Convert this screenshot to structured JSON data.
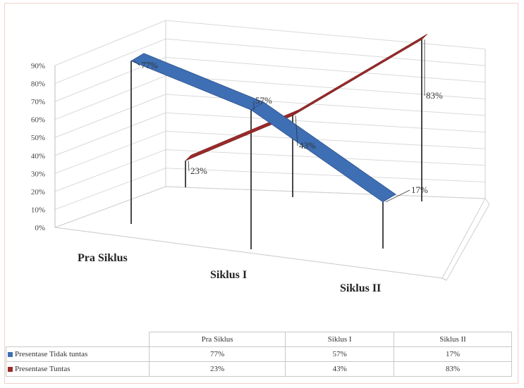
{
  "chart_data": {
    "type": "line",
    "title": "",
    "xlabel": "",
    "ylabel": "",
    "ylim": [
      0,
      90
    ],
    "ytick_labels": [
      "0%",
      "10%",
      "20%",
      "30%",
      "40%",
      "50%",
      "60%",
      "70%",
      "80%",
      "90%"
    ],
    "categories": [
      "Pra Siklus",
      "Siklus I",
      "Siklus II"
    ],
    "series": [
      {
        "name": "Presentase Tidak tuntas",
        "values": [
          77,
          57,
          17
        ],
        "labels": [
          "77%",
          "57%",
          "17%"
        ],
        "color": "#3e6fb5"
      },
      {
        "name": "Presentase Tuntas",
        "values": [
          23,
          43,
          83
        ],
        "labels": [
          "23%",
          "43%",
          "83%"
        ],
        "color": "#9b2a2a"
      }
    ],
    "grid": true,
    "legend": "data-table"
  },
  "table": {
    "headers": [
      "Pra Siklus",
      "Siklus I",
      "Siklus II"
    ],
    "rows": [
      {
        "label": "Presentase Tidak tuntas",
        "values": [
          "77%",
          "57%",
          "17%"
        ]
      },
      {
        "label": "Presentase Tuntas",
        "values": [
          "23%",
          "43%",
          "83%"
        ]
      }
    ]
  }
}
